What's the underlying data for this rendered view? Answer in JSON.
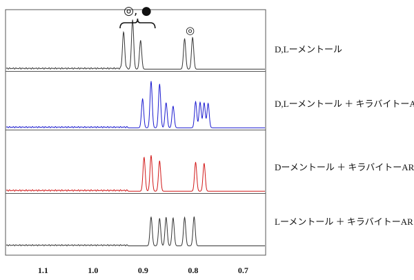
{
  "chart_data": {
    "type": "line",
    "xlabel": "",
    "ylabel": "",
    "xlim": [
      1.175,
      0.655
    ],
    "x_ticks": [
      "1.1",
      "1.0",
      "0.9",
      "0.8",
      "0.7"
    ],
    "x_tick_values": [
      1.1,
      1.0,
      0.9,
      0.8,
      0.7
    ],
    "grid": false,
    "annotations": {
      "bracket_symbols": "◎, ●",
      "bracket_range": [
        0.946,
        0.876
      ],
      "single_symbol": "◎",
      "single_position": 0.806
    },
    "series": [
      {
        "name": "D,Lーメントール",
        "color": "#333333",
        "baseline": 0.02,
        "peaks": [
          {
            "x": 0.939,
            "h": 0.6
          },
          {
            "x": 0.921,
            "h": 0.81
          },
          {
            "x": 0.905,
            "h": 0.47
          },
          {
            "x": 0.817,
            "h": 0.5
          },
          {
            "x": 0.801,
            "h": 0.52
          }
        ]
      },
      {
        "name": "D,Lーメントール ＋ キラバイトーAR",
        "color": "#1a1ad0",
        "baseline": 0.02,
        "peaks": [
          {
            "x": 0.901,
            "h": 0.51
          },
          {
            "x": 0.884,
            "h": 0.82
          },
          {
            "x": 0.867,
            "h": 0.77
          },
          {
            "x": 0.854,
            "h": 0.44
          },
          {
            "x": 0.84,
            "h": 0.38
          },
          {
            "x": 0.795,
            "h": 0.46
          },
          {
            "x": 0.786,
            "h": 0.45
          },
          {
            "x": 0.778,
            "h": 0.44
          },
          {
            "x": 0.77,
            "h": 0.43
          }
        ]
      },
      {
        "name": "Dーメントール ＋ キラバイトーAR",
        "color": "#d21818",
        "baseline": 0.02,
        "peaks": [
          {
            "x": 0.898,
            "h": 0.55
          },
          {
            "x": 0.884,
            "h": 0.58
          },
          {
            "x": 0.867,
            "h": 0.49
          },
          {
            "x": 0.795,
            "h": 0.47
          },
          {
            "x": 0.778,
            "h": 0.45
          }
        ]
      },
      {
        "name": "Lーメントール ＋ キラバイトーAR",
        "color": "#333333",
        "baseline": 0.02,
        "peaks": [
          {
            "x": 0.884,
            "h": 0.55
          },
          {
            "x": 0.867,
            "h": 0.52
          },
          {
            "x": 0.854,
            "h": 0.54
          },
          {
            "x": 0.84,
            "h": 0.53
          },
          {
            "x": 0.817,
            "h": 0.54
          },
          {
            "x": 0.798,
            "h": 0.55
          }
        ]
      }
    ]
  }
}
